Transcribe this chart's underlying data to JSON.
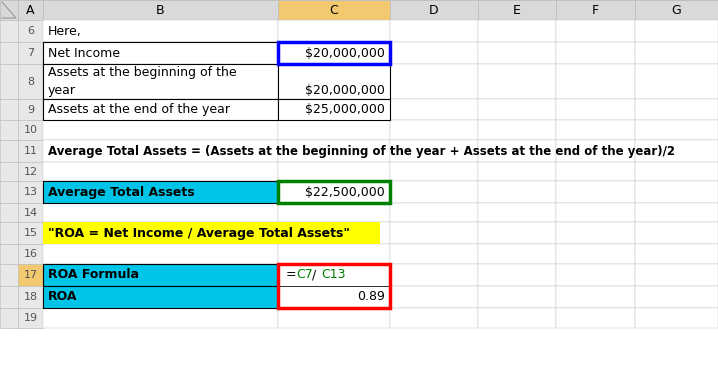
{
  "col_headers": [
    "",
    "A",
    "B",
    "C",
    "D",
    "E",
    "F",
    "G"
  ],
  "grid_color": "#c0c0c0",
  "cell_bg_cyan": "#00c5e8",
  "cell_bg_yellow": "#ffff00",
  "header_bg_gray": "#d9d9d9",
  "header_bg_yellow": "#f2c96e",
  "row_num_bg": "#e8e8e8",
  "row17_num_bg": "#f2c96e",
  "text_green": "#008000",
  "border_blue": "#0000ff",
  "border_green": "#008000",
  "border_red": "#ff0000",
  "row6_text": "Here,",
  "row7_b": "Net Income",
  "row7_c": "$20,000,000",
  "row8_b_line1": "Assets at the beginning of the",
  "row8_b_line2": "year",
  "row8_c": "$20,000,000",
  "row9_b": "Assets at the end of the year",
  "row9_c": "$25,000,000",
  "row11_text": "Average Total Assets = (Assets at the beginning of the year + Assets at the end of the year)/2",
  "row13_b": "Average Total Assets",
  "row13_c": "$22,500,000",
  "row15_text": "\"ROA = Net Income / Average Total Assets\"",
  "row17_b": "ROA Formula",
  "row17_c_eq": "=C7/C13",
  "row18_b": "ROA",
  "row18_c": "0.89",
  "fig_w": 7.18,
  "fig_h": 3.92,
  "dpi": 100
}
